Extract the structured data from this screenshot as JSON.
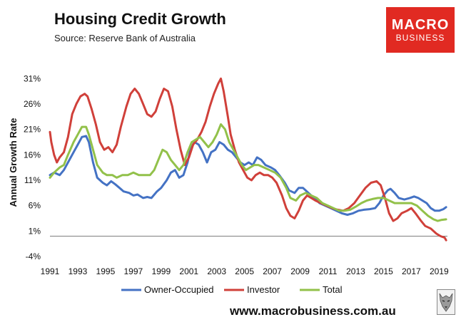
{
  "header": {
    "title": "Housing Credit Growth",
    "subtitle": "Source: Reserve Bank of Australia"
  },
  "brand": {
    "line1": "MACRO",
    "line2": "BUSINESS",
    "color": "#e12a22"
  },
  "footer": {
    "website": "www.macrobusiness.com.au"
  },
  "chart_data": {
    "type": "line",
    "title": "Housing Credit Growth",
    "xlabel": "",
    "ylabel": "Annual Growth Rate",
    "ylim": [
      -4,
      33
    ],
    "xlim": [
      1991,
      2019.6
    ],
    "y_ticks": [
      "31%",
      "26%",
      "21%",
      "16%",
      "11%",
      "6%",
      "1%",
      "-4%"
    ],
    "y_tick_values": [
      31,
      26,
      21,
      16,
      11,
      6,
      1,
      -4
    ],
    "x_ticks": [
      "1991",
      "1993",
      "1995",
      "1997",
      "1999",
      "2001",
      "2003",
      "2005",
      "2007",
      "2009",
      "2011",
      "2013",
      "2015",
      "2017",
      "2019"
    ],
    "x_tick_values": [
      1991,
      1993,
      1995,
      1997,
      1999,
      2001,
      2003,
      2005,
      2007,
      2009,
      2011,
      2013,
      2015,
      2017,
      2019
    ],
    "zero_line": 0,
    "grid": false,
    "legend_position": "bottom",
    "series": [
      {
        "name": "Owner-Occupied",
        "color": "#4472c4",
        "points": [
          [
            1991.0,
            12.0
          ],
          [
            1991.3,
            12.5
          ],
          [
            1991.7,
            12.0
          ],
          [
            1992.0,
            13.0
          ],
          [
            1992.3,
            14.5
          ],
          [
            1992.7,
            16.5
          ],
          [
            1993.0,
            18.0
          ],
          [
            1993.3,
            19.5
          ],
          [
            1993.6,
            19.7
          ],
          [
            1993.8,
            18.5
          ],
          [
            1994.1,
            14.5
          ],
          [
            1994.4,
            11.5
          ],
          [
            1994.8,
            10.5
          ],
          [
            1995.1,
            10.0
          ],
          [
            1995.4,
            10.8
          ],
          [
            1995.7,
            10.2
          ],
          [
            1996.0,
            9.5
          ],
          [
            1996.3,
            8.8
          ],
          [
            1996.7,
            8.5
          ],
          [
            1997.0,
            8.0
          ],
          [
            1997.3,
            8.2
          ],
          [
            1997.7,
            7.5
          ],
          [
            1998.0,
            7.7
          ],
          [
            1998.3,
            7.5
          ],
          [
            1998.7,
            8.8
          ],
          [
            1999.0,
            9.5
          ],
          [
            1999.4,
            11.0
          ],
          [
            1999.7,
            12.5
          ],
          [
            2000.0,
            13.0
          ],
          [
            2000.3,
            11.5
          ],
          [
            2000.6,
            12.0
          ],
          [
            2000.9,
            14.5
          ],
          [
            2001.1,
            17.0
          ],
          [
            2001.4,
            18.5
          ],
          [
            2001.7,
            18.0
          ],
          [
            2002.0,
            16.5
          ],
          [
            2002.3,
            14.5
          ],
          [
            2002.6,
            16.5
          ],
          [
            2002.9,
            17.0
          ],
          [
            2003.2,
            18.5
          ],
          [
            2003.5,
            18.0
          ],
          [
            2003.8,
            17.0
          ],
          [
            2004.1,
            16.5
          ],
          [
            2004.4,
            15.5
          ],
          [
            2004.7,
            14.5
          ],
          [
            2005.0,
            14.0
          ],
          [
            2005.3,
            14.5
          ],
          [
            2005.6,
            14.0
          ],
          [
            2005.9,
            15.5
          ],
          [
            2006.2,
            15.0
          ],
          [
            2006.5,
            14.0
          ],
          [
            2006.9,
            13.5
          ],
          [
            2007.2,
            13.0
          ],
          [
            2007.5,
            12.0
          ],
          [
            2007.9,
            10.5
          ],
          [
            2008.2,
            9.0
          ],
          [
            2008.6,
            8.5
          ],
          [
            2008.9,
            9.5
          ],
          [
            2009.2,
            9.5
          ],
          [
            2009.6,
            8.5
          ],
          [
            2010.0,
            7.5
          ],
          [
            2010.4,
            6.5
          ],
          [
            2010.8,
            6.0
          ],
          [
            2011.2,
            5.5
          ],
          [
            2011.6,
            5.0
          ],
          [
            2012.0,
            4.5
          ],
          [
            2012.4,
            4.2
          ],
          [
            2012.8,
            4.5
          ],
          [
            2013.2,
            5.0
          ],
          [
            2013.6,
            5.2
          ],
          [
            2014.0,
            5.3
          ],
          [
            2014.4,
            5.5
          ],
          [
            2014.7,
            6.5
          ],
          [
            2015.0,
            8.0
          ],
          [
            2015.3,
            9.0
          ],
          [
            2015.5,
            9.3
          ],
          [
            2015.8,
            8.5
          ],
          [
            2016.1,
            7.5
          ],
          [
            2016.5,
            7.2
          ],
          [
            2016.9,
            7.5
          ],
          [
            2017.2,
            7.8
          ],
          [
            2017.5,
            7.5
          ],
          [
            2017.8,
            7.0
          ],
          [
            2018.1,
            6.5
          ],
          [
            2018.4,
            5.5
          ],
          [
            2018.7,
            5.0
          ],
          [
            2019.0,
            5.0
          ],
          [
            2019.3,
            5.3
          ],
          [
            2019.5,
            5.7
          ]
        ]
      },
      {
        "name": "Investor",
        "color": "#d0403a",
        "points": [
          [
            1991.0,
            20.5
          ],
          [
            1991.1,
            18.5
          ],
          [
            1991.3,
            16.0
          ],
          [
            1991.5,
            14.5
          ],
          [
            1991.7,
            15.5
          ],
          [
            1992.0,
            16.5
          ],
          [
            1992.3,
            19.5
          ],
          [
            1992.6,
            24.0
          ],
          [
            1992.9,
            26.0
          ],
          [
            1993.2,
            27.5
          ],
          [
            1993.5,
            28.0
          ],
          [
            1993.7,
            27.5
          ],
          [
            1994.0,
            25.0
          ],
          [
            1994.3,
            22.0
          ],
          [
            1994.6,
            18.5
          ],
          [
            1994.9,
            17.0
          ],
          [
            1995.2,
            17.5
          ],
          [
            1995.5,
            16.5
          ],
          [
            1995.8,
            18.0
          ],
          [
            1996.1,
            21.5
          ],
          [
            1996.5,
            25.5
          ],
          [
            1996.8,
            28.0
          ],
          [
            1997.1,
            29.0
          ],
          [
            1997.4,
            28.0
          ],
          [
            1997.7,
            26.0
          ],
          [
            1998.0,
            24.0
          ],
          [
            1998.3,
            23.5
          ],
          [
            1998.6,
            24.5
          ],
          [
            1998.9,
            27.0
          ],
          [
            1999.2,
            29.0
          ],
          [
            1999.5,
            28.5
          ],
          [
            1999.8,
            25.5
          ],
          [
            2000.1,
            21.0
          ],
          [
            2000.4,
            17.0
          ],
          [
            2000.7,
            14.0
          ],
          [
            2001.0,
            15.5
          ],
          [
            2001.3,
            18.0
          ],
          [
            2001.6,
            19.0
          ],
          [
            2001.9,
            20.5
          ],
          [
            2002.2,
            22.5
          ],
          [
            2002.5,
            25.5
          ],
          [
            2002.8,
            28.0
          ],
          [
            2003.1,
            30.0
          ],
          [
            2003.3,
            31.0
          ],
          [
            2003.5,
            28.5
          ],
          [
            2003.8,
            23.5
          ],
          [
            2004.0,
            20.0
          ],
          [
            2004.3,
            17.0
          ],
          [
            2004.6,
            14.5
          ],
          [
            2004.9,
            13.0
          ],
          [
            2005.2,
            11.5
          ],
          [
            2005.5,
            11.0
          ],
          [
            2005.8,
            12.0
          ],
          [
            2006.1,
            12.5
          ],
          [
            2006.4,
            12.0
          ],
          [
            2006.7,
            12.0
          ],
          [
            2007.0,
            11.5
          ],
          [
            2007.3,
            10.5
          ],
          [
            2007.7,
            8.0
          ],
          [
            2008.0,
            5.5
          ],
          [
            2008.3,
            4.0
          ],
          [
            2008.6,
            3.5
          ],
          [
            2008.9,
            5.0
          ],
          [
            2009.2,
            7.0
          ],
          [
            2009.5,
            8.0
          ],
          [
            2009.8,
            7.5
          ],
          [
            2010.1,
            7.0
          ],
          [
            2010.5,
            6.5
          ],
          [
            2010.9,
            6.0
          ],
          [
            2011.3,
            5.5
          ],
          [
            2011.7,
            5.2
          ],
          [
            2012.1,
            5.0
          ],
          [
            2012.5,
            5.5
          ],
          [
            2012.9,
            6.5
          ],
          [
            2013.3,
            8.0
          ],
          [
            2013.7,
            9.5
          ],
          [
            2014.1,
            10.5
          ],
          [
            2014.5,
            10.8
          ],
          [
            2014.8,
            10.0
          ],
          [
            2015.1,
            7.5
          ],
          [
            2015.4,
            4.5
          ],
          [
            2015.7,
            3.0
          ],
          [
            2016.0,
            3.5
          ],
          [
            2016.3,
            4.5
          ],
          [
            2016.7,
            5.0
          ],
          [
            2017.0,
            5.5
          ],
          [
            2017.3,
            4.5
          ],
          [
            2017.7,
            3.0
          ],
          [
            2018.0,
            2.0
          ],
          [
            2018.4,
            1.5
          ],
          [
            2018.8,
            0.5
          ],
          [
            2019.1,
            0.0
          ],
          [
            2019.4,
            -0.3
          ],
          [
            2019.5,
            -0.8
          ]
        ]
      },
      {
        "name": "Total",
        "color": "#92c14a",
        "points": [
          [
            1991.0,
            11.5
          ],
          [
            1991.3,
            12.5
          ],
          [
            1991.7,
            13.5
          ],
          [
            1992.0,
            14.0
          ],
          [
            1992.3,
            16.0
          ],
          [
            1992.7,
            18.5
          ],
          [
            1993.0,
            20.0
          ],
          [
            1993.3,
            21.5
          ],
          [
            1993.6,
            21.5
          ],
          [
            1993.8,
            20.0
          ],
          [
            1994.1,
            17.0
          ],
          [
            1994.4,
            14.0
          ],
          [
            1994.8,
            12.5
          ],
          [
            1995.1,
            12.0
          ],
          [
            1995.5,
            12.0
          ],
          [
            1995.8,
            11.5
          ],
          [
            1996.2,
            12.0
          ],
          [
            1996.6,
            12.0
          ],
          [
            1997.0,
            12.5
          ],
          [
            1997.4,
            12.0
          ],
          [
            1997.8,
            12.0
          ],
          [
            1998.2,
            12.0
          ],
          [
            1998.5,
            13.0
          ],
          [
            1998.8,
            15.0
          ],
          [
            1999.1,
            17.0
          ],
          [
            1999.4,
            16.5
          ],
          [
            1999.7,
            15.0
          ],
          [
            2000.0,
            14.0
          ],
          [
            2000.3,
            13.0
          ],
          [
            2000.6,
            14.0
          ],
          [
            2000.9,
            16.5
          ],
          [
            2001.2,
            18.5
          ],
          [
            2001.5,
            19.0
          ],
          [
            2001.8,
            19.5
          ],
          [
            2002.1,
            18.5
          ],
          [
            2002.4,
            17.5
          ],
          [
            2002.7,
            18.5
          ],
          [
            2003.0,
            20.0
          ],
          [
            2003.3,
            22.0
          ],
          [
            2003.6,
            21.0
          ],
          [
            2003.9,
            18.5
          ],
          [
            2004.2,
            17.0
          ],
          [
            2004.5,
            15.5
          ],
          [
            2004.8,
            14.0
          ],
          [
            2005.1,
            13.0
          ],
          [
            2005.4,
            13.5
          ],
          [
            2005.7,
            14.0
          ],
          [
            2006.0,
            14.0
          ],
          [
            2006.4,
            13.5
          ],
          [
            2006.8,
            13.0
          ],
          [
            2007.2,
            12.5
          ],
          [
            2007.6,
            11.5
          ],
          [
            2008.0,
            9.5
          ],
          [
            2008.3,
            7.5
          ],
          [
            2008.7,
            7.0
          ],
          [
            2009.0,
            8.0
          ],
          [
            2009.4,
            8.5
          ],
          [
            2009.8,
            8.0
          ],
          [
            2010.2,
            7.5
          ],
          [
            2010.6,
            6.5
          ],
          [
            2011.0,
            6.0
          ],
          [
            2011.4,
            5.5
          ],
          [
            2011.8,
            5.0
          ],
          [
            2012.2,
            5.0
          ],
          [
            2012.6,
            5.2
          ],
          [
            2013.0,
            5.8
          ],
          [
            2013.4,
            6.5
          ],
          [
            2013.8,
            7.0
          ],
          [
            2014.2,
            7.3
          ],
          [
            2014.6,
            7.5
          ],
          [
            2015.0,
            7.5
          ],
          [
            2015.4,
            7.0
          ],
          [
            2015.8,
            6.5
          ],
          [
            2016.2,
            6.5
          ],
          [
            2016.6,
            6.5
          ],
          [
            2017.0,
            6.5
          ],
          [
            2017.4,
            6.0
          ],
          [
            2017.8,
            5.0
          ],
          [
            2018.2,
            4.0
          ],
          [
            2018.6,
            3.3
          ],
          [
            2018.9,
            3.0
          ],
          [
            2019.2,
            3.2
          ],
          [
            2019.5,
            3.3
          ]
        ]
      }
    ]
  }
}
